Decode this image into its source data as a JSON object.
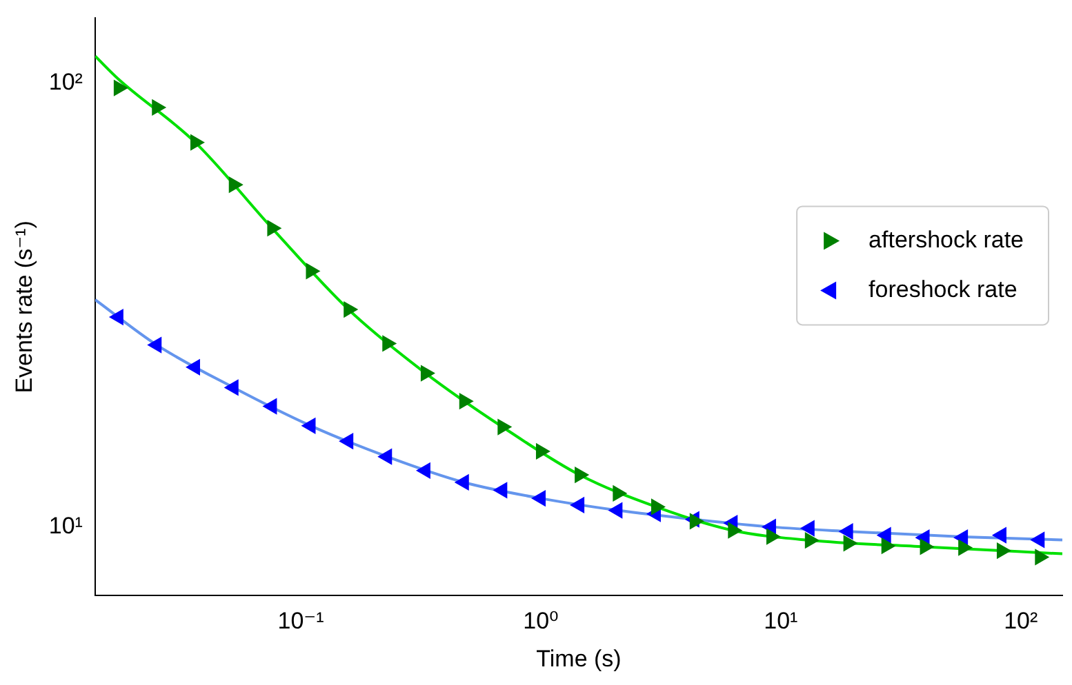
{
  "chart_data": {
    "type": "scatter",
    "xlabel": "Time (s)",
    "ylabel": "Events rate (s⁻¹)",
    "log": "xy",
    "xlim": [
      0.0139,
      149
    ],
    "ylim": [
      7,
      140
    ],
    "xticks": [
      {
        "value": 0.1,
        "label": "10⁻¹"
      },
      {
        "value": 1,
        "label": "10⁰"
      },
      {
        "value": 10,
        "label": "10¹"
      },
      {
        "value": 100,
        "label": "10²"
      }
    ],
    "yticks": [
      {
        "value": 10,
        "label": "10¹"
      },
      {
        "value": 100,
        "label": "10²"
      }
    ],
    "grid": false,
    "legend": "right",
    "marker": "triangle",
    "x": [
      0.0174,
      0.0251,
      0.0363,
      0.0525,
      0.0759,
      0.11,
      0.158,
      0.229,
      0.331,
      0.479,
      0.692,
      1.0,
      1.45,
      2.09,
      3.02,
      4.37,
      6.31,
      9.12,
      13.2,
      19.1,
      27.5,
      39.8,
      57.5,
      83.2,
      120
    ],
    "series": [
      {
        "name": "aftershock rate",
        "color": "#008000",
        "values": [
          97.5,
          88.1,
          73.5,
          59.0,
          47.1,
          37.7,
          30.9,
          25.9,
          22.2,
          19.2,
          16.8,
          14.8,
          13.1,
          11.9,
          11.1,
          10.3,
          9.82,
          9.51,
          9.33,
          9.19,
          9.06,
          9.02,
          8.98,
          8.84,
          8.55
        ]
      },
      {
        "name": "foreshock rate",
        "color": "#0000ff",
        "values": [
          29.7,
          25.7,
          22.9,
          20.6,
          18.7,
          16.9,
          15.6,
          14.4,
          13.4,
          12.6,
          12.1,
          11.6,
          11.2,
          10.9,
          10.7,
          10.4,
          10.2,
          10.0,
          9.93,
          9.77,
          9.58,
          9.46,
          9.46,
          9.58,
          9.35
        ]
      },
      {
        "type": "line",
        "color": "#00e000",
        "marker": "none",
        "x": [
          0.0139,
          0.0174,
          0.0363,
          0.0759,
          0.158,
          0.331,
          0.692,
          1.45,
          3.02,
          6.31,
          13.2,
          39.8,
          149
        ],
        "values": [
          115,
          102,
          73.5,
          47.1,
          30.9,
          22.2,
          16.8,
          13.1,
          11.1,
          9.82,
          9.33,
          9.02,
          8.7
        ]
      },
      {
        "type": "line",
        "color": "#6495ed",
        "marker": "none",
        "x": [
          0.0139,
          0.0251,
          0.0525,
          0.11,
          0.229,
          0.479,
          1,
          2.09,
          4.37,
          9.12,
          19.1,
          57.5,
          149
        ],
        "values": [
          32.5,
          25.7,
          20.6,
          16.9,
          14.4,
          12.6,
          11.6,
          10.9,
          10.4,
          10.0,
          9.77,
          9.5,
          9.35
        ]
      }
    ]
  }
}
